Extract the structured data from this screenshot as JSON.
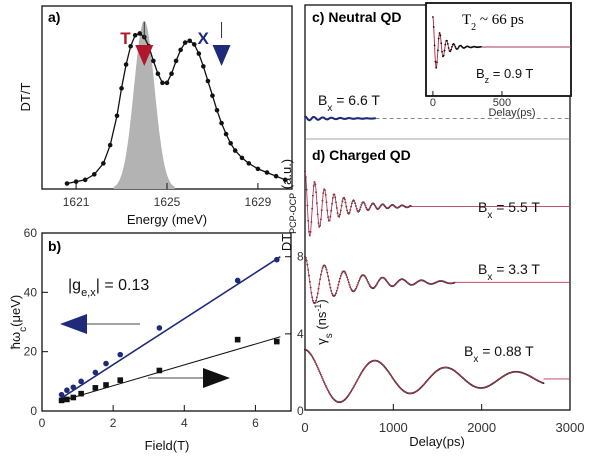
{
  "chart_data": [
    {
      "panel": "a)",
      "type": "line",
      "xlabel": "Energy (meV)",
      "ylabel": "DT/T",
      "xlim": [
        1619.5,
        1630.5
      ],
      "xticks": [
        1621,
        1625,
        1629
      ],
      "markers": [
        {
          "label": "T",
          "x": 1624.0,
          "color": "#b0172a"
        },
        {
          "label": "X",
          "x": 1627.4,
          "color": "#1e2a7a"
        }
      ],
      "series": [
        {
          "x": [
            1620.6,
            1621.0,
            1621.4,
            1621.8,
            1622.2,
            1622.5,
            1622.8,
            1623.0,
            1623.2,
            1623.4,
            1623.6,
            1623.8,
            1624.0,
            1624.2,
            1624.4,
            1624.6,
            1624.8,
            1625.0,
            1625.2,
            1625.4,
            1625.6,
            1625.8,
            1626.0,
            1626.2,
            1626.4,
            1626.6,
            1626.8,
            1627.0,
            1627.2,
            1627.4,
            1627.6,
            1627.8,
            1628.0,
            1628.3,
            1628.6,
            1629.0,
            1629.4,
            1629.8,
            1630.2
          ],
          "values": [
            0.03,
            0.04,
            0.05,
            0.08,
            0.14,
            0.24,
            0.4,
            0.55,
            0.68,
            0.78,
            0.84,
            0.85,
            0.83,
            0.78,
            0.7,
            0.63,
            0.58,
            0.58,
            0.63,
            0.7,
            0.76,
            0.8,
            0.81,
            0.79,
            0.74,
            0.67,
            0.59,
            0.51,
            0.43,
            0.36,
            0.3,
            0.25,
            0.21,
            0.17,
            0.14,
            0.11,
            0.09,
            0.07,
            0.05
          ]
        }
      ],
      "shaded_peak": {
        "center": 1624.0,
        "width": 0.45,
        "height": 0.92
      }
    },
    {
      "panel": "b)",
      "type": "scatter",
      "xlabel": "Field(T)",
      "ylabel_left": "ħω_c(μeV)",
      "ylabel_right": "γ_s(ns⁻¹)",
      "xlim": [
        0,
        7
      ],
      "ylim_left": [
        0,
        60
      ],
      "ylim_right": [
        0,
        9.23
      ],
      "xticks": [
        0,
        2,
        4,
        6
      ],
      "yticks_left": [
        0,
        20,
        40,
        60
      ],
      "yticks_right": [
        0,
        4,
        8
      ],
      "annotation": "|g_e,x| = 0.13",
      "series": [
        {
          "axis": "left",
          "marker": "circle",
          "color": "#1e2a7a",
          "x": [
            0.55,
            0.7,
            0.88,
            1.1,
            1.5,
            1.8,
            2.2,
            3.3,
            5.5,
            6.6
          ],
          "values": [
            5.5,
            7,
            8,
            10,
            13,
            16,
            19,
            28,
            44,
            51
          ],
          "fit": {
            "x": [
              0.5,
              6.7
            ],
            "values": [
              4,
              52
            ]
          }
        },
        {
          "axis": "right",
          "marker": "square",
          "color": "#111111",
          "x": [
            0.55,
            0.7,
            0.88,
            1.1,
            1.5,
            1.8,
            2.2,
            3.3,
            5.5,
            6.6
          ],
          "values": [
            0.55,
            0.6,
            0.7,
            0.9,
            1.2,
            1.35,
            1.6,
            2.1,
            3.7,
            3.6
          ],
          "fit": {
            "x": [
              0.5,
              6.7
            ],
            "values": [
              0.5,
              3.85
            ]
          }
        }
      ]
    },
    {
      "panel": "c-d",
      "type": "line",
      "xlabel": "Delay(ps)",
      "ylabel": "DT_PCP-OCP (a.u.)",
      "xlim": [
        0,
        3000
      ],
      "xticks": [
        0,
        1000,
        2000,
        3000
      ],
      "titles": [
        "c) Neutral QD",
        "d) Charged QD"
      ],
      "series": [
        {
          "name": "B_x = 6.6 T",
          "baseline": 8.45,
          "amp": 0.06,
          "period": 100,
          "decay": 300,
          "end": 800
        },
        {
          "name": "B_x = 5.5 T",
          "baseline": 5.9,
          "amp": 1.0,
          "period": 110,
          "decay": 320,
          "end": 1200
        },
        {
          "name": "B_x = 3.3 T",
          "baseline": 3.7,
          "amp": 0.75,
          "period": 220,
          "decay": 520,
          "end": 1700
        },
        {
          "name": "B_x = 0.88 T",
          "baseline": 0.9,
          "amp": 0.85,
          "period": 800,
          "decay": 1700,
          "end": 2700
        }
      ]
    },
    {
      "panel": "inset",
      "type": "line",
      "title": "T_2 ~ 66 ps",
      "label": "B_z = 0.9 T",
      "xlabel": "Delay(ps)",
      "xlim": [
        -50,
        1000
      ],
      "xticks": [
        0,
        500
      ],
      "series": [
        {
          "amp": 1.0,
          "period": 50,
          "decay": 66
        }
      ]
    }
  ]
}
